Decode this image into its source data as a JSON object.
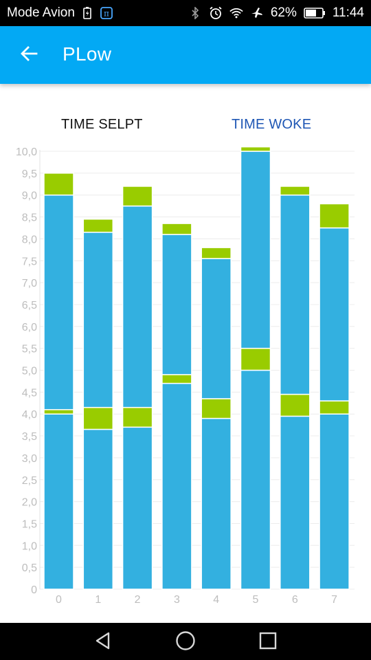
{
  "status_bar": {
    "carrier": "Mode Avion",
    "battery_pct": "62%",
    "time": "11:44",
    "icons": [
      "battery-charging-icon",
      "pi-app-icon",
      "bluetooth-icon",
      "alarm-icon",
      "wifi-icon",
      "airplane-mode-icon",
      "battery-icon"
    ]
  },
  "app_bar": {
    "title": "PLow",
    "back_icon": "arrow-left-icon"
  },
  "tabs": {
    "time_slept": "TIME SELPT",
    "time_woke": "TIME WOKE"
  },
  "colors": {
    "app_bar": "#03a9f4",
    "bar_blue": "#33b0e0",
    "bar_green": "#99cc00",
    "active_tab": "#1e56b4"
  },
  "chart_data": {
    "type": "bar",
    "stacked": true,
    "categories": [
      "0",
      "1",
      "2",
      "3",
      "4",
      "5",
      "6",
      "7"
    ],
    "y_ticks": [
      "0",
      "0,5",
      "1,0",
      "1,5",
      "2,0",
      "2,5",
      "3,0",
      "3,5",
      "4,0",
      "4,5",
      "5,0",
      "5,5",
      "6,0",
      "6,5",
      "7,0",
      "7,5",
      "8,0",
      "8,5",
      "9,0",
      "9,5",
      "10,0"
    ],
    "ylim": [
      0,
      10
    ],
    "grid": true,
    "legend": "none",
    "series": [
      {
        "values": [
          4.0,
          3.65,
          3.7,
          4.7,
          3.9,
          5.0,
          3.95,
          4.0
        ]
      },
      {
        "values": [
          0.1,
          0.5,
          0.45,
          0.2,
          0.45,
          0.5,
          0.5,
          0.3
        ]
      },
      {
        "values": [
          4.9,
          4.0,
          4.6,
          3.2,
          3.2,
          4.5,
          4.55,
          3.95
        ]
      },
      {
        "values": [
          0.5,
          0.3,
          0.45,
          0.25,
          0.25,
          0.1,
          0.2,
          0.55
        ]
      }
    ]
  },
  "nav_bar": {
    "icons": [
      "back-triangle-icon",
      "home-circle-icon",
      "recents-square-icon"
    ]
  }
}
